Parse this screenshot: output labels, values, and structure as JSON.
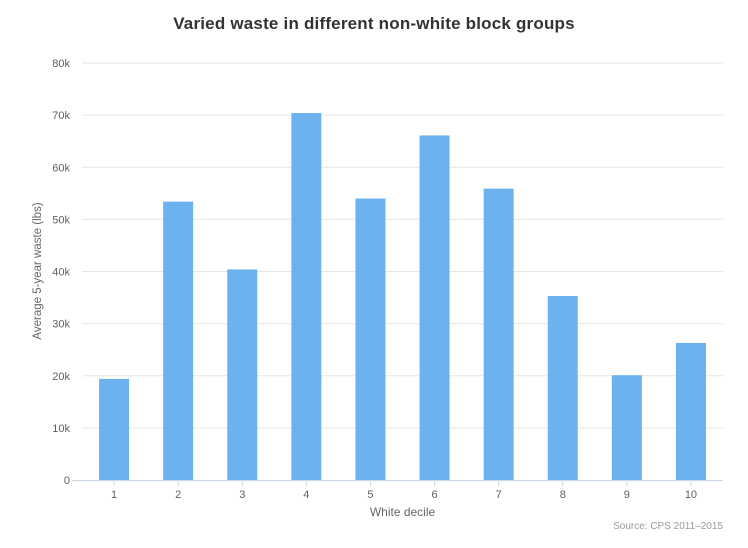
{
  "chart_data": {
    "type": "bar",
    "title": "Varied waste in different non-white block groups",
    "xlabel": "White decile",
    "ylabel": "Average 5-year waste (lbs)",
    "source": "Source: CPS 2011–2015",
    "categories": [
      "1",
      "2",
      "3",
      "4",
      "5",
      "6",
      "7",
      "8",
      "9",
      "10"
    ],
    "values": [
      19400,
      53400,
      40400,
      70400,
      54000,
      66100,
      55900,
      35300,
      20100,
      26300
    ],
    "ylim": [
      0,
      80000
    ],
    "ytick_interval": 10000,
    "ytick_labels": [
      "0",
      "10k",
      "20k",
      "30k",
      "40k",
      "50k",
      "60k",
      "70k",
      "80k"
    ],
    "grid": true,
    "legend": "none",
    "colors": {
      "bar": "#6cb2ee",
      "grid": "#e6e6e6",
      "axis_line": "#ccd6eb",
      "tick_label": "#606060",
      "axis_title": "#666666",
      "title": "#333333",
      "source": "#999999",
      "background": "#ffffff"
    }
  }
}
